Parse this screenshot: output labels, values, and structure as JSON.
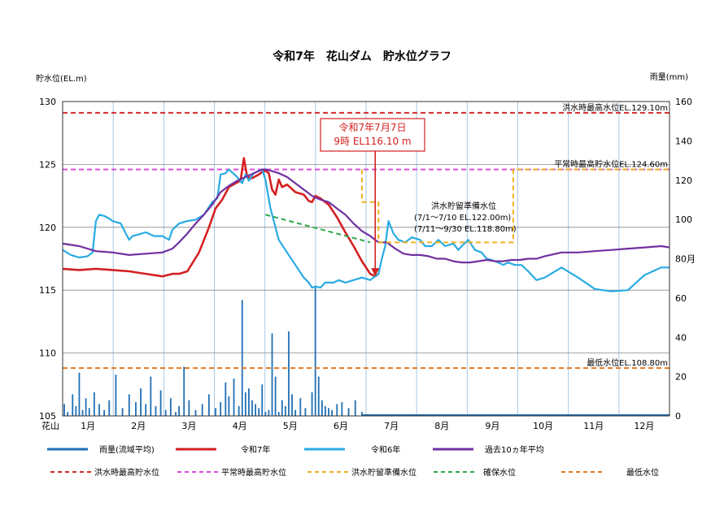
{
  "chart_data": {
    "type": "line",
    "title": "令和7年　花山ダム　貯水位グラフ",
    "ylabel_left": "貯水位(EL.m)",
    "ylabel_right": "雨量(mm)",
    "x_axis_label": "花山",
    "months": [
      "1月",
      "2月",
      "3月",
      "4月",
      "5月",
      "6月",
      "7月",
      "8月",
      "9月",
      "10月",
      "11月",
      "12月"
    ],
    "ylim_left": [
      105,
      130
    ],
    "yticks_left": [
      105,
      110,
      115,
      120,
      125,
      130
    ],
    "ylim_right": [
      0,
      160
    ],
    "yticks_right": [
      0,
      20,
      40,
      60,
      80,
      100,
      120,
      140,
      160
    ],
    "right_tick_80_label": "80月",
    "x_range_days": [
      0,
      365
    ],
    "grid": true,
    "reference_lines": [
      {
        "name": "洪水時最高水位",
        "value": 129.1,
        "label": "洪水時最高水位EL.129.10m",
        "color": "#d42a2a"
      },
      {
        "name": "平常時最高貯水位",
        "value": 124.6,
        "label": "平常時最高貯水位EL.124.60m",
        "color": "#e04ae0"
      },
      {
        "name": "最低水位",
        "value": 108.8,
        "label": "最低水位EL.108.80m",
        "color": "#e07a20"
      }
    ],
    "flood_prep_annotation": {
      "title": "洪水貯留準備水位",
      "line1": "(7/1～7/10  EL.122.00m)",
      "line2": "(7/11～9/30 EL.118.80m)"
    },
    "callout": {
      "line1": "令和7年7月7日",
      "line2": "9時  EL116.10  m",
      "day": 188,
      "value": 116.1
    },
    "legend_row1": [
      {
        "label": "雨量(流域平均)",
        "color": "#1f6fb5"
      },
      {
        "label": "令和7年",
        "color": "#d42020"
      },
      {
        "label": "令和6年",
        "color": "#29abe2"
      },
      {
        "label": "過去10ヵ年平均",
        "color": "#7030a0"
      }
    ],
    "legend_row2": [
      {
        "label": "洪水時最高貯水位",
        "color": "#d42a2a"
      },
      {
        "label": "平常時最高貯水位",
        "color": "#e04ae0"
      },
      {
        "label": "洪水貯留準備水位",
        "color": "#f0b020"
      },
      {
        "label": "確保水位",
        "color": "#2ea84a"
      },
      {
        "label": "最低水位",
        "color": "#e07a20"
      }
    ],
    "series": [
      {
        "name": "令和7年",
        "color": "#d42020",
        "x": [
          0,
          10,
          20,
          30,
          40,
          50,
          60,
          66,
          70,
          75,
          82,
          88,
          92,
          96,
          100,
          104,
          107,
          109,
          111,
          114,
          118,
          120,
          122,
          124,
          126,
          128,
          130,
          132,
          135,
          140,
          145,
          148,
          150,
          152,
          155,
          160,
          165,
          170,
          175,
          180,
          185,
          188,
          190
        ],
        "y": [
          116.7,
          116.6,
          116.7,
          116.6,
          116.5,
          116.3,
          116.1,
          116.3,
          116.3,
          116.5,
          118.0,
          120.0,
          121.5,
          122.2,
          123.2,
          123.5,
          123.7,
          125.5,
          124.0,
          123.9,
          124.2,
          124.4,
          124.5,
          124.3,
          123.0,
          122.6,
          123.8,
          123.2,
          123.4,
          122.8,
          122.6,
          122.1,
          122.0,
          122.5,
          122.3,
          121.8,
          120.8,
          119.6,
          118.5,
          117.3,
          116.3,
          116.1,
          116.3
        ]
      },
      {
        "name": "令和6年",
        "color": "#29abe2",
        "x": [
          0,
          5,
          10,
          15,
          18,
          20,
          22,
          25,
          28,
          30,
          35,
          38,
          40,
          42,
          45,
          50,
          55,
          60,
          64,
          66,
          70,
          75,
          80,
          85,
          90,
          93,
          95,
          98,
          100,
          105,
          108,
          110,
          112,
          115,
          118,
          120,
          122,
          125,
          130,
          135,
          140,
          145,
          148,
          150,
          152,
          155,
          158,
          160,
          163,
          166,
          170,
          175,
          180,
          185,
          190,
          192,
          194,
          196,
          199,
          202,
          206,
          210,
          215,
          218,
          222,
          226,
          230,
          235,
          238,
          240,
          244,
          248,
          252,
          255,
          258,
          262,
          265,
          268,
          272,
          276,
          280,
          285,
          290,
          300,
          310,
          320,
          330,
          340,
          350,
          360,
          365
        ],
        "y": [
          118.2,
          117.8,
          117.6,
          117.7,
          118.0,
          120.5,
          121.0,
          120.9,
          120.7,
          120.5,
          120.3,
          119.5,
          119.0,
          119.3,
          119.4,
          119.6,
          119.3,
          119.3,
          119.0,
          119.8,
          120.3,
          120.5,
          120.6,
          121.0,
          122.0,
          122.3,
          124.2,
          124.3,
          124.6,
          124.0,
          123.5,
          124.2,
          123.7,
          124.3,
          124.5,
          124.6,
          123.8,
          121.5,
          119.0,
          118.0,
          117.0,
          116.0,
          115.6,
          115.2,
          115.3,
          115.2,
          115.6,
          115.6,
          115.6,
          115.8,
          115.6,
          115.8,
          116.0,
          115.8,
          116.3,
          117.5,
          118.5,
          120.5,
          119.5,
          119.0,
          118.8,
          119.2,
          119.0,
          118.5,
          118.5,
          119.0,
          118.5,
          118.7,
          118.2,
          118.5,
          119.0,
          118.2,
          118.0,
          117.5,
          117.4,
          117.2,
          117.0,
          117.2,
          117.0,
          117.0,
          116.5,
          115.8,
          116.0,
          116.8,
          116.0,
          115.1,
          114.9,
          115.0,
          116.2,
          116.8,
          116.8
        ]
      },
      {
        "name": "過去10ヵ年平均",
        "color": "#7030a0",
        "x": [
          0,
          10,
          20,
          30,
          40,
          50,
          60,
          66,
          70,
          75,
          80,
          85,
          90,
          95,
          100,
          105,
          110,
          115,
          120,
          122,
          125,
          130,
          135,
          140,
          145,
          150,
          155,
          160,
          165,
          170,
          175,
          180,
          185,
          188,
          190,
          195,
          200,
          205,
          210,
          215,
          220,
          225,
          230,
          235,
          240,
          245,
          250,
          255,
          260,
          265,
          270,
          275,
          280,
          285,
          290,
          300,
          310,
          320,
          330,
          340,
          350,
          360,
          365
        ],
        "y": [
          118.7,
          118.5,
          118.1,
          118.0,
          117.8,
          117.9,
          118.0,
          118.3,
          118.8,
          119.5,
          120.3,
          121.0,
          121.8,
          122.8,
          123.3,
          123.7,
          124.0,
          124.3,
          124.6,
          124.6,
          124.5,
          124.3,
          124.0,
          123.5,
          123.0,
          122.5,
          122.2,
          122.0,
          121.5,
          121.0,
          120.3,
          119.7,
          119.3,
          119.0,
          118.8,
          118.8,
          118.3,
          117.9,
          117.8,
          117.8,
          117.7,
          117.5,
          117.5,
          117.3,
          117.2,
          117.2,
          117.3,
          117.4,
          117.3,
          117.3,
          117.4,
          117.4,
          117.5,
          117.5,
          117.7,
          118.0,
          118.0,
          118.1,
          118.2,
          118.3,
          118.4,
          118.5,
          118.4
        ]
      },
      {
        "name": "洪水貯留準備水位",
        "color": "#f0b020",
        "x": [
          180,
          180,
          190,
          190,
          271,
          271,
          365
        ],
        "y": [
          124.6,
          122.0,
          122.0,
          118.8,
          118.8,
          124.6,
          124.6
        ]
      },
      {
        "name": "確保水位",
        "color": "#2ea84a",
        "x": [
          122,
          185
        ],
        "y": [
          121.0,
          118.8
        ]
      }
    ],
    "rainfall": {
      "name": "雨量(流域平均)",
      "color": "#1f6fb5",
      "x": [
        1,
        3,
        6,
        8,
        10,
        12,
        14,
        16,
        19,
        22,
        25,
        28,
        32,
        36,
        40,
        44,
        47,
        50,
        53,
        56,
        59,
        62,
        65,
        68,
        70,
        73,
        76,
        80,
        84,
        88,
        92,
        95,
        98,
        100,
        103,
        106,
        108,
        110,
        112,
        114,
        116,
        118,
        120,
        122,
        124,
        126,
        128,
        130,
        132,
        134,
        136,
        138,
        140,
        143,
        146,
        150,
        152,
        154,
        156,
        158,
        160,
        162,
        165,
        168,
        172,
        176,
        180
      ],
      "y": [
        6,
        2,
        11,
        5,
        22,
        3,
        9,
        4,
        12,
        6,
        3,
        8,
        21,
        4,
        11,
        7,
        14,
        6,
        20,
        5,
        13,
        3,
        9,
        2,
        5,
        25,
        8,
        3,
        6,
        11,
        4,
        7,
        17,
        10,
        19,
        5,
        59,
        12,
        14,
        8,
        6,
        4,
        16,
        2,
        3,
        42,
        20,
        2,
        8,
        5,
        43,
        11,
        3,
        9,
        4,
        12,
        66,
        20,
        8,
        5,
        4,
        3,
        6,
        7,
        4,
        8,
        2
      ]
    }
  }
}
